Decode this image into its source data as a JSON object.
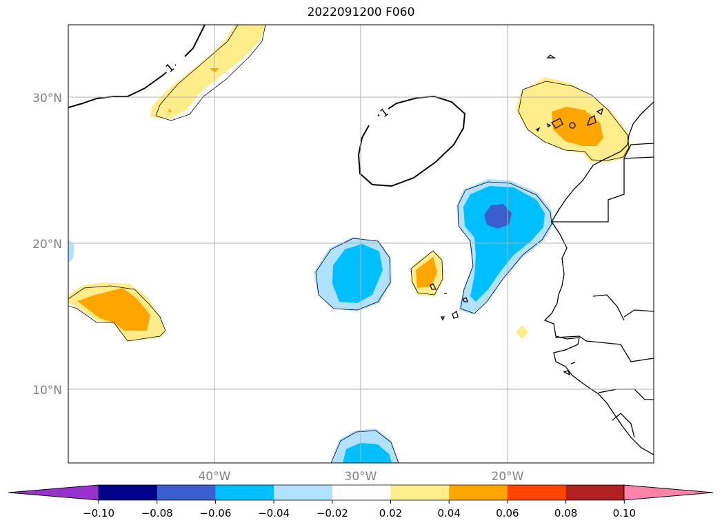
{
  "title": "2022091200 F060",
  "map": {
    "lon_range": [
      -50,
      -10
    ],
    "lat_range": [
      5,
      35
    ],
    "gridlines": true,
    "lat_ticks": [
      30,
      20,
      10
    ],
    "lat_labels": [
      "30°N",
      "20°N",
      "10°N"
    ],
    "lon_ticks": [
      -40,
      -30,
      -20
    ],
    "lon_labels": [
      "40°W",
      "30°W",
      "20°W"
    ],
    "contour_label": "1"
  },
  "colorbar": {
    "ticks": [
      "−0.10",
      "−0.08",
      "−0.06",
      "−0.04",
      "−0.02",
      "0.02",
      "0.04",
      "0.06",
      "0.08",
      "0.10"
    ],
    "colors": [
      "#9932cc",
      "#00008b",
      "#3a5fcd",
      "#00bfff",
      "#b0e2ff",
      "#ffffff",
      "#ffec8b",
      "#ffa500",
      "#ff4500",
      "#b22222",
      "#ff82ab"
    ]
  },
  "colors": {
    "light_yellow": "#ffec8b",
    "orange": "#ffa500",
    "light_blue": "#b0e2ff",
    "deep_sky_blue": "#00bfff",
    "royal_blue": "#3a5fcd",
    "gridline": "#b0b0b0"
  }
}
